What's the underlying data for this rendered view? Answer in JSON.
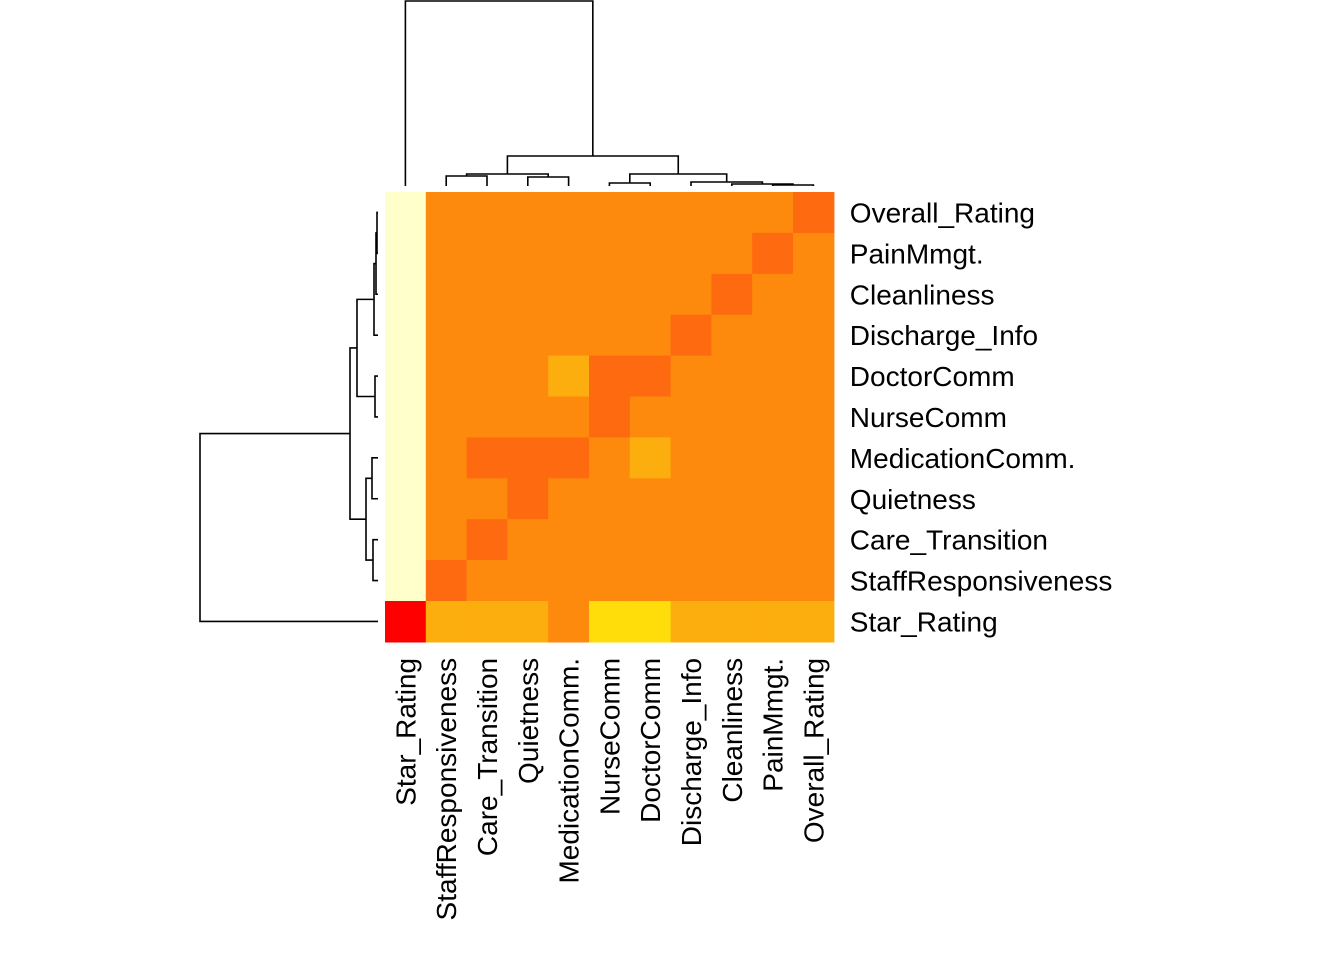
{
  "chart_data": {
    "type": "heatmap",
    "title": "",
    "xlabel": "",
    "ylabel": "",
    "col_labels": [
      "Star_Rating",
      "StaffResponsiveness",
      "Care_Transition",
      "Quietness",
      "MedicationComm.",
      "NurseComm",
      "DoctorComm",
      "Discharge_Info",
      "Cleanliness",
      "PainMmgt.",
      "Overall_Rating"
    ],
    "row_labels": [
      "Overall_Rating",
      "PainMmgt.",
      "Cleanliness",
      "Discharge_Info",
      "DoctorComm",
      "NurseComm",
      "MedicationComm.",
      "Quietness",
      "Care_Transition",
      "StaffResponsiveness",
      "Star_Rating"
    ],
    "value_scale": "rank 1 (red) to 5 (light yellow)",
    "values": [
      [
        5,
        2,
        2,
        2,
        2,
        2,
        2,
        2,
        2,
        2,
        1
      ],
      [
        5,
        2,
        2,
        2,
        2,
        2,
        2,
        2,
        2,
        1,
        2
      ],
      [
        5,
        2,
        2,
        2,
        2,
        2,
        2,
        2,
        1,
        2,
        2
      ],
      [
        5,
        2,
        2,
        2,
        2,
        2,
        2,
        1,
        2,
        2,
        2
      ],
      [
        5,
        2,
        2,
        2,
        3,
        1,
        1,
        2,
        2,
        2,
        2
      ],
      [
        5,
        2,
        2,
        2,
        2,
        1,
        2,
        2,
        2,
        2,
        2
      ],
      [
        5,
        2,
        1,
        1,
        1,
        2,
        3,
        2,
        2,
        2,
        2
      ],
      [
        5,
        2,
        2,
        1,
        2,
        2,
        2,
        2,
        2,
        2,
        2
      ],
      [
        5,
        2,
        1,
        2,
        2,
        2,
        2,
        2,
        2,
        2,
        2
      ],
      [
        5,
        1,
        2,
        2,
        2,
        2,
        2,
        2,
        2,
        2,
        2
      ],
      [
        0,
        3,
        3,
        3,
        2,
        4,
        4,
        3,
        3,
        3,
        3
      ]
    ],
    "palette": [
      "#ff0000",
      "#fd6a0f",
      "#fe8a0d",
      "#fdae0f",
      "#fedd0b",
      "#ffffcc"
    ],
    "row_dendrogram": "left",
    "col_dendrogram": "top"
  }
}
